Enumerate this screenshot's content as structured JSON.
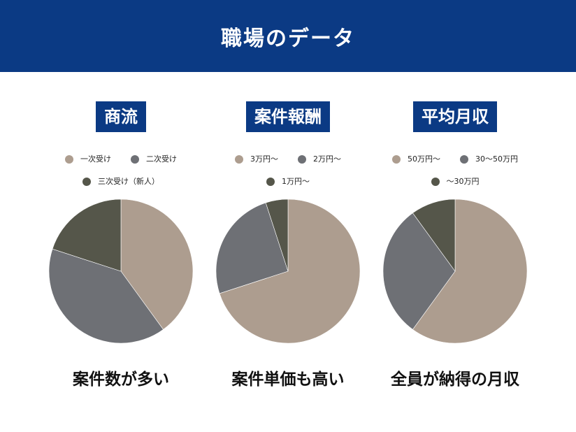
{
  "header": {
    "title": "職場のデータ"
  },
  "chart_data": [
    {
      "type": "pie",
      "title": "商流",
      "categories": [
        "一次受け",
        "二次受け",
        "三次受け（新人）"
      ],
      "values": [
        40,
        40,
        20
      ],
      "colors": [
        "#ad9d8f",
        "#6e7075",
        "#55564a"
      ],
      "legend": "top",
      "caption": "案件数が多い"
    },
    {
      "type": "pie",
      "title": "案件報酬",
      "categories": [
        "3万円〜",
        "2万円〜",
        "1万円〜"
      ],
      "values": [
        70,
        25,
        5
      ],
      "colors": [
        "#ad9d8f",
        "#6e7075",
        "#55564a"
      ],
      "legend": "top",
      "caption": "案件単価も高い"
    },
    {
      "type": "pie",
      "title": "平均月収",
      "categories": [
        "50万円〜",
        "30〜50万円",
        "〜30万円"
      ],
      "values": [
        60,
        30,
        10
      ],
      "colors": [
        "#ad9d8f",
        "#6e7075",
        "#55564a"
      ],
      "legend": "top",
      "caption": "全員が納得の月収"
    }
  ]
}
